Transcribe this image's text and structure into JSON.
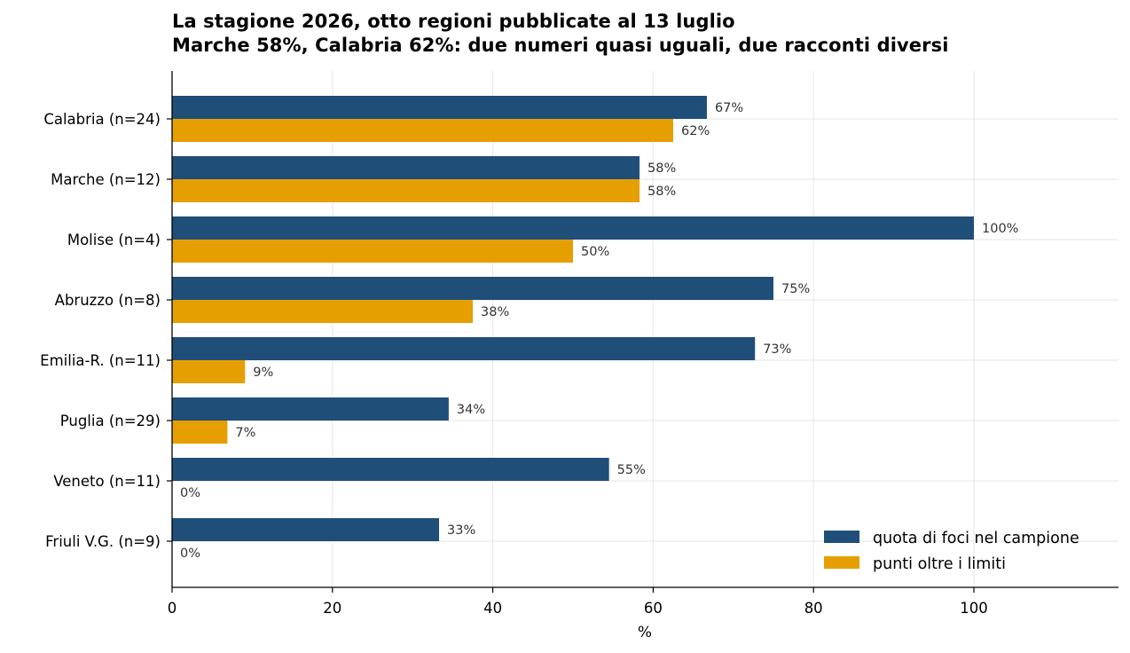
{
  "chart_data": {
    "type": "bar",
    "orientation": "horizontal",
    "title": "La stagione 2026, otto regioni pubblicate al 13 luglio",
    "subtitle": "Marche 58%, Calabria 62%: due numeri quasi uguali, due racconti diversi",
    "xlabel": "%",
    "ylabel": "",
    "xlim": [
      0,
      118
    ],
    "xticks": [
      0,
      20,
      40,
      60,
      80,
      100
    ],
    "grid": true,
    "legend_position": "bottom-right",
    "categories": [
      "Calabria  (n=24)",
      "Marche  (n=12)",
      "Molise  (n=4)",
      "Abruzzo  (n=8)",
      "Emilia-R.  (n=11)",
      "Puglia  (n=29)",
      "Veneto  (n=11)",
      "Friuli V.G.  (n=9)"
    ],
    "series": [
      {
        "name": "quota di foci nel campione",
        "color": "#1f4e79",
        "values": [
          66.7,
          58.3,
          100,
          75,
          72.7,
          34.5,
          54.5,
          33.3
        ],
        "labels": [
          "67%",
          "58%",
          "100%",
          "75%",
          "73%",
          "34%",
          "55%",
          "33%"
        ]
      },
      {
        "name": "punti oltre i limiti",
        "color": "#e69f00",
        "values": [
          62.5,
          58.3,
          50,
          37.5,
          9.1,
          6.9,
          0,
          0
        ],
        "labels": [
          "62%",
          "58%",
          "50%",
          "38%",
          "9%",
          "7%",
          "0%",
          "0%"
        ]
      }
    ]
  }
}
